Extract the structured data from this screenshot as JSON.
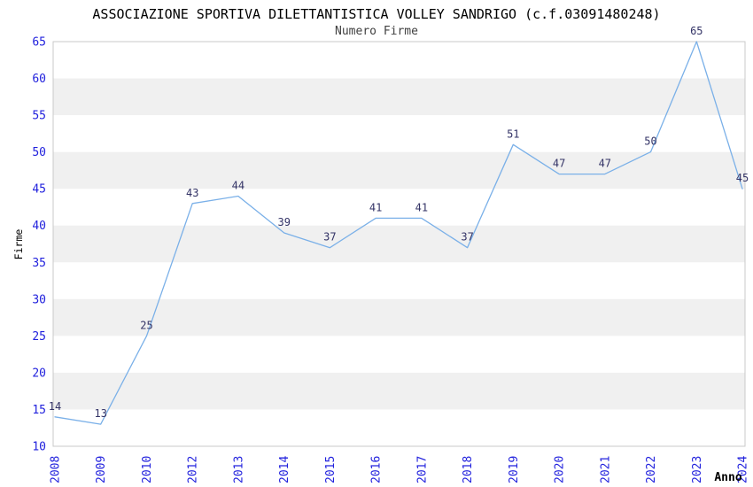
{
  "chart_data": {
    "type": "line",
    "title": "ASSOCIAZIONE SPORTIVA DILETTANTISTICA VOLLEY SANDRIGO (c.f.03091480248)",
    "subtitle": "Numero Firme",
    "xlabel": "Anno",
    "ylabel": "Firme",
    "categories": [
      "2008",
      "2009",
      "2010",
      "2012",
      "2013",
      "2014",
      "2015",
      "2016",
      "2017",
      "2018",
      "2019",
      "2020",
      "2021",
      "2022",
      "2023",
      "2024"
    ],
    "values": [
      14,
      13,
      25,
      43,
      44,
      39,
      37,
      41,
      41,
      37,
      51,
      47,
      47,
      50,
      65,
      45
    ],
    "ylim": [
      10,
      65
    ],
    "ytick_step": 5,
    "grid": "alternating-horizontal-bands",
    "legend": "none",
    "colors": {
      "line": "#7ab0e8",
      "tick_label": "#2222dd",
      "data_label": "#333366",
      "band": "#f0f0f0",
      "plot_border": "#c8c8c8",
      "title": "#000000",
      "subtitle": "#404040",
      "axis_title": "#000000",
      "background": "#ffffff"
    }
  }
}
